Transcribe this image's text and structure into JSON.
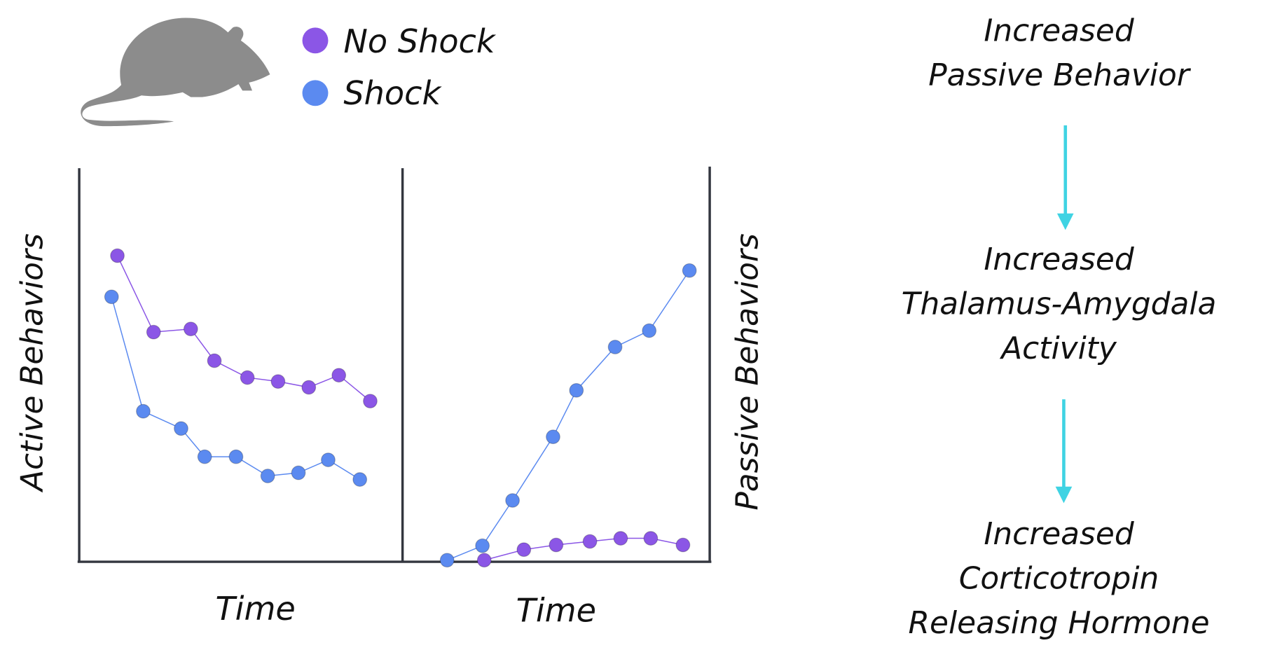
{
  "chart_data": [
    {
      "type": "line",
      "xlabel": "Time",
      "ylabel": "Active Behaviors",
      "xlim": [
        0,
        100
      ],
      "ylim": [
        0,
        100
      ],
      "series": [
        {
          "name": "No Shock",
          "color": "#8b56e6",
          "x": [
            11.8,
            23,
            34.5,
            41.8,
            52,
            61.5,
            71,
            80.3,
            90
          ],
          "values": [
            78.1,
            58.6,
            59.4,
            51.3,
            47.0,
            46.0,
            44.5,
            47.6,
            41.0
          ]
        },
        {
          "name": "Shock",
          "color": "#5b8af0",
          "x": [
            10,
            19.8,
            31.5,
            38.8,
            48.5,
            58.3,
            67.8,
            77,
            86.8
          ],
          "values": [
            67.6,
            38.4,
            34.0,
            26.8,
            26.8,
            21.9,
            22.7,
            26.0,
            21.0
          ]
        }
      ]
    },
    {
      "type": "line",
      "xlabel": "Time",
      "ylabel": "Passive Behaviors",
      "xlim": [
        0,
        100
      ],
      "ylim": [
        0,
        100
      ],
      "series": [
        {
          "name": "Shock",
          "color": "#5b8af0",
          "x": [
            14.5,
            26,
            35.8,
            49,
            56.6,
            69.2,
            80.3,
            93.4
          ],
          "values": [
            0,
            3.7,
            15.3,
            31.6,
            43.5,
            54.6,
            58.8,
            74.2
          ]
        },
        {
          "name": "No Shock",
          "color": "#8b56e6",
          "x": [
            26.6,
            39.5,
            50,
            61,
            71,
            80.8,
            91.3
          ],
          "values": [
            0,
            2.7,
            3.9,
            4.8,
            5.6,
            5.6,
            3.9
          ]
        }
      ]
    }
  ],
  "flow": {
    "steps": [
      [
        "Increased",
        "Passive Behavior"
      ],
      [
        "Increased",
        "Thalamus-Amygdala",
        "Activity"
      ],
      [
        "Increased",
        "Corticotropin",
        "Releasing Hormone"
      ]
    ]
  }
}
